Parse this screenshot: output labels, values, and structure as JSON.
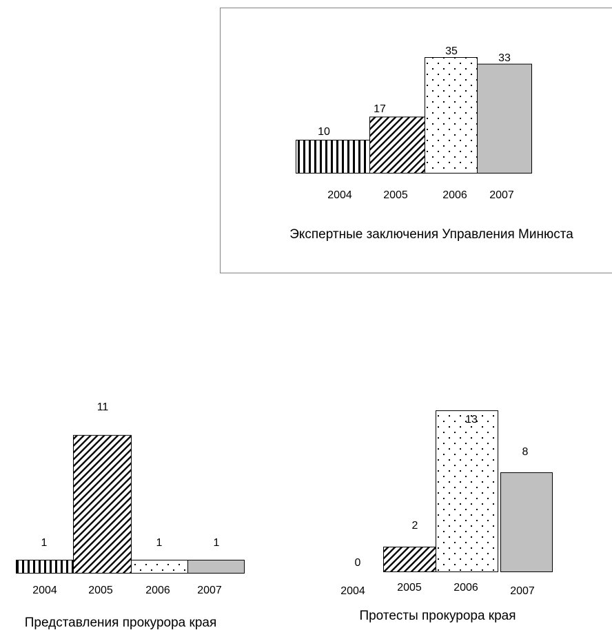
{
  "chart_data": [
    {
      "type": "bar",
      "xlabel": "Экспертные заключения Управления Минюста",
      "categories": [
        "2004",
        "2005",
        "2006",
        "2007"
      ],
      "values": [
        10,
        17,
        35,
        33
      ],
      "value_labels": [
        "10",
        "17",
        "35",
        "33"
      ],
      "bordered_panel": true
    },
    {
      "type": "bar",
      "xlabel": "Представления прокурора края",
      "categories": [
        "2004",
        "2005",
        "2006",
        "2007"
      ],
      "values": [
        1,
        11,
        1,
        1
      ],
      "value_labels": [
        "1",
        "11",
        "1",
        "1"
      ]
    },
    {
      "type": "bar",
      "xlabel": "Протесты прокурора края",
      "categories": [
        "2004",
        "2005",
        "2006",
        "2007"
      ],
      "values": [
        0,
        2,
        13,
        8
      ],
      "value_labels": [
        "0",
        "2",
        "13",
        "8"
      ]
    }
  ],
  "patterns": [
    "vertical-stripes",
    "diagonal-hatch",
    "dots",
    "solid"
  ],
  "colors": {
    "bar_fill_2007": "#c0c0c0",
    "stroke": "#000000",
    "frame": "#808080"
  }
}
